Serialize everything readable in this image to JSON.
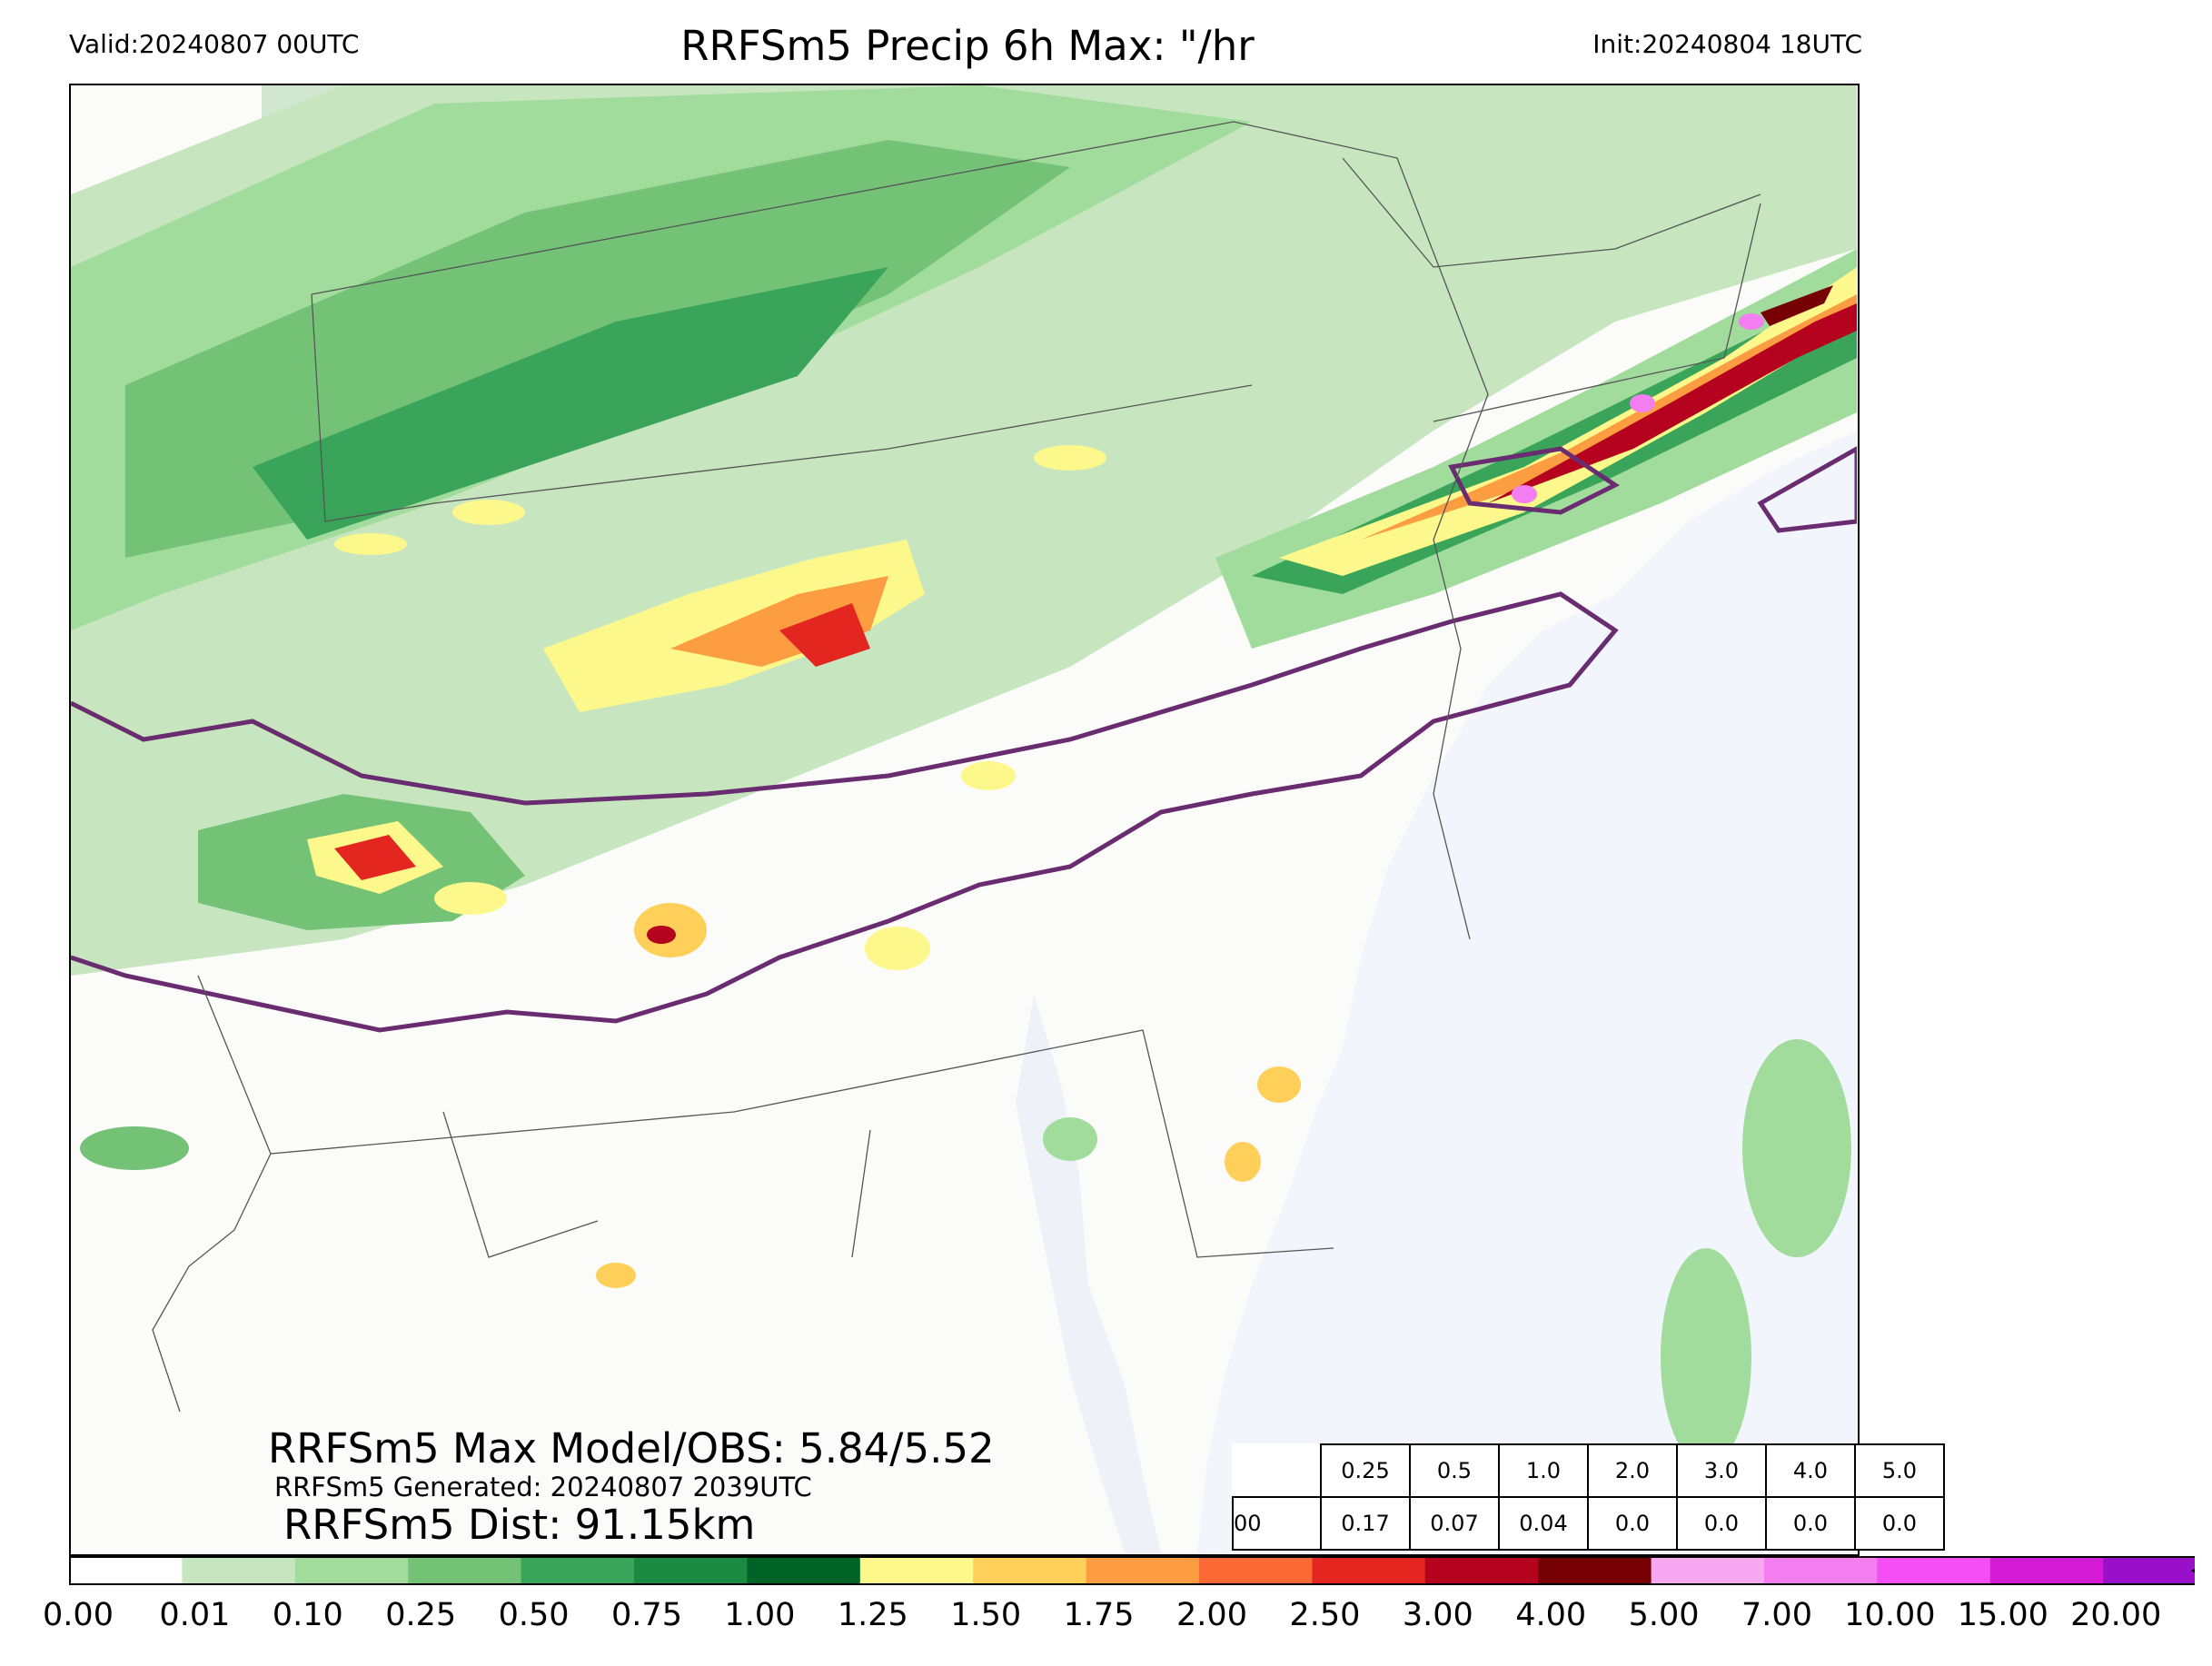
{
  "header": {
    "valid": "Valid:20240807 00UTC",
    "title": "RRFSm5 Precip 6h Max: \"/hr",
    "init": "Init:20240804 18UTC"
  },
  "stats": {
    "max_model_obs": "RRFSm5 Max Model/OBS: 5.84/5.52",
    "generated": "RRFSm5 Generated: 20240807 2039UTC",
    "distance": "RRFSm5 Dist: 91.15km"
  },
  "threshold_table": {
    "thresholds": [
      "0.25",
      "0.5",
      "1.0",
      "2.0",
      "3.0",
      "4.0",
      "5.0"
    ],
    "row_label": "00",
    "values": [
      "0.17",
      "0.07",
      "0.04",
      "0.0",
      "0.0",
      "0.0",
      "0.0"
    ]
  },
  "colorbar": {
    "levels": [
      "0.00",
      "0.01",
      "0.10",
      "0.25",
      "0.50",
      "0.75",
      "1.00",
      "1.25",
      "1.50",
      "1.75",
      "2.00",
      "2.50",
      "3.00",
      "4.00",
      "5.00",
      "7.00",
      "10.00",
      "15.00",
      "20.00"
    ],
    "colors": [
      "#ffffff",
      "#c7e6c0",
      "#a1dc9c",
      "#74c276",
      "#3aa55a",
      "#1b8a43",
      "#006428",
      "#fdf88c",
      "#fed05a",
      "#fc9d42",
      "#fb6a35",
      "#e3261f",
      "#b5021f",
      "#770005",
      "#f6a9f0",
      "#f27ef0",
      "#f44ef4",
      "#d41ad4",
      "#9a0fca"
    ],
    "extend_color": "#5c0a96"
  },
  "map_colors": {
    "ocean": "#f2f6fc",
    "lake": "#c9e3c9",
    "obs_contour": "#6a2c70",
    "border": "#555555"
  }
}
